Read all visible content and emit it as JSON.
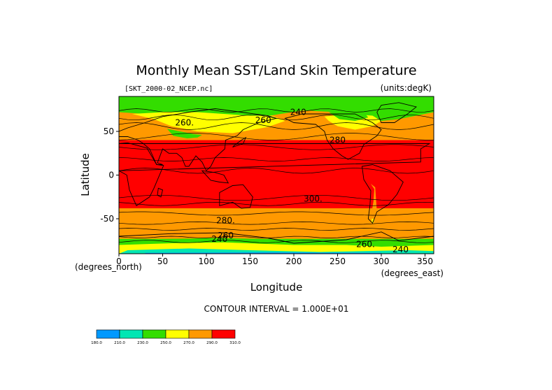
{
  "chart_data": {
    "type": "heatmap",
    "title": "Monthly Mean SST/Land Skin Temperature",
    "file_label": "[SKT_2000-02_NCEP.nc]",
    "units_label": "(units:degK)",
    "xlabel": "Longitude",
    "ylabel": "Latitude",
    "x_unit_label": "(degrees_east)",
    "y_unit_label": "(degrees_north)",
    "xlim": [
      0,
      360
    ],
    "ylim": [
      -90,
      90
    ],
    "x_ticks": [
      "0",
      "50",
      "100",
      "150",
      "200",
      "250",
      "300",
      "350"
    ],
    "x_tick_values": [
      0,
      50,
      100,
      150,
      200,
      250,
      300,
      350
    ],
    "y_ticks": [
      "50",
      "0",
      "-50"
    ],
    "y_tick_values": [
      50,
      0,
      -50
    ],
    "contour_interval_text": "CONTOUR INTERVAL = 1.000E+01",
    "contour_labels": [
      {
        "text": "260.",
        "lon": 75,
        "lat": 60,
        "value": 260
      },
      {
        "text": "240",
        "lon": 205,
        "lat": 72,
        "value": 240
      },
      {
        "text": "260",
        "lon": 165,
        "lat": 63,
        "value": 260
      },
      {
        "text": "280",
        "lon": 250,
        "lat": 40,
        "value": 280
      },
      {
        "text": "300.",
        "lon": 222,
        "lat": -27,
        "value": 300
      },
      {
        "text": "280.",
        "lon": 122,
        "lat": -52,
        "value": 280
      },
      {
        "text": "260",
        "lon": 122,
        "lat": -69,
        "value": 260
      },
      {
        "text": "240",
        "lon": 115,
        "lat": -73,
        "value": 240
      },
      {
        "text": "260.",
        "lon": 282,
        "lat": -79,
        "value": 260
      },
      {
        "text": "240",
        "lon": 322,
        "lat": -85,
        "value": 240
      }
    ],
    "color_scale": {
      "levels": [
        "180.0",
        "210.0",
        "230.0",
        "250.0",
        "270.0",
        "290.0",
        "310.0"
      ],
      "colors": [
        "#0099ff",
        "#00e6b3",
        "#33dd00",
        "#ffff00",
        "#ff9900",
        "#ff0000"
      ]
    },
    "colors": {
      "band_red": "#ff0000",
      "band_orange": "#ff9900",
      "band_yellow": "#ffff00",
      "band_green": "#33dd00",
      "band_teal": "#00e6b3",
      "band_blue": "#0099ff"
    },
    "grid": false
  }
}
